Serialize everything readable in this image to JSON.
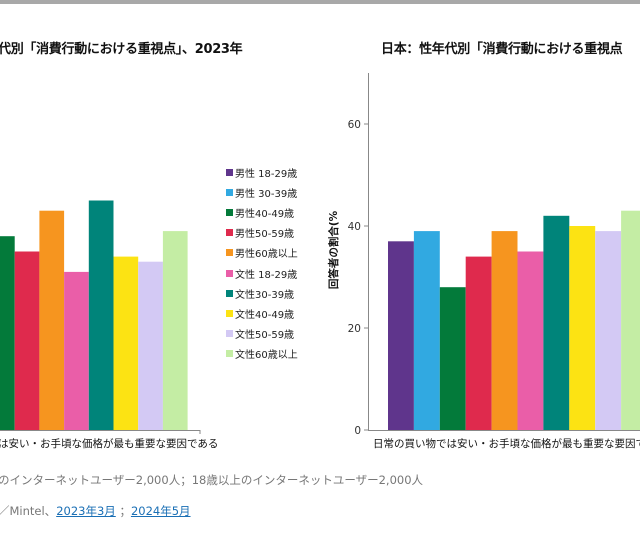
{
  "colors": [
    "#5f358c",
    "#31a9e1",
    "#037a3a",
    "#df2a4d",
    "#f6951f",
    "#ea5ea8",
    "#00847a",
    "#fce313",
    "#d3c9f4",
    "#c4eda4"
  ],
  "legend": [
    "男性 18-29歳",
    "男性 30-39歳",
    "男性40-49歳",
    "男性50-59歳",
    "男性60歳以上",
    "文性 18-29歳",
    "文性30-39歳",
    "文性40-49歳",
    "文性50-59歳",
    "文性60歳以上"
  ],
  "chart_data": [
    {
      "type": "bar",
      "title": "代別「消費行動における重視点」、2023年",
      "categories": [
        "は安い・お手頃な価格が最も重要な要因である"
      ],
      "series": [
        {
          "name": "男性40-49歳",
          "values": [
            38
          ]
        },
        {
          "name": "男性50-59歳",
          "values": [
            35
          ]
        },
        {
          "name": "男性60歳以上",
          "values": [
            43
          ]
        },
        {
          "name": "文性 18-29歳",
          "values": [
            31
          ]
        },
        {
          "name": "文性30-39歳",
          "values": [
            45
          ]
        },
        {
          "name": "文性40-49歳",
          "values": [
            34
          ]
        },
        {
          "name": "文性50-59歳",
          "values": [
            33
          ]
        },
        {
          "name": "文性60歳以上",
          "values": [
            39
          ]
        }
      ],
      "ylim": [
        0,
        70
      ],
      "legend_position": "right"
    },
    {
      "type": "bar",
      "title": "日本：性年代別「消費行動における重視点",
      "categories": [
        "日常の買い物では安い・お手頃な価格が最も重要な要因で"
      ],
      "ylabel": "回答者の割合(%",
      "yticks": [
        0,
        20,
        40,
        60
      ],
      "series": [
        {
          "name": "男性 18-29歳",
          "values": [
            37
          ]
        },
        {
          "name": "男性 30-39歳",
          "values": [
            39
          ]
        },
        {
          "name": "男性40-49歳",
          "values": [
            28
          ]
        },
        {
          "name": "男性50-59歳",
          "values": [
            34
          ]
        },
        {
          "name": "男性60歳以上",
          "values": [
            39
          ]
        },
        {
          "name": "文性 18-29歳",
          "values": [
            35
          ]
        },
        {
          "name": "文性30-39歳",
          "values": [
            42
          ]
        },
        {
          "name": "文性40-49歳",
          "values": [
            40
          ]
        },
        {
          "name": "文性50-59歳",
          "values": [
            39
          ]
        },
        {
          "name": "文性60歳以上",
          "values": [
            43
          ]
        }
      ],
      "ylim": [
        0,
        70
      ]
    }
  ],
  "footer": {
    "base": "のインターネットユーザー2,000人；18歳以上のインターネットユーザー2,000人",
    "source_prefix": "／Mintel、",
    "link1": "2023年3月",
    "sep": "；",
    "link2": "2024年5月"
  }
}
